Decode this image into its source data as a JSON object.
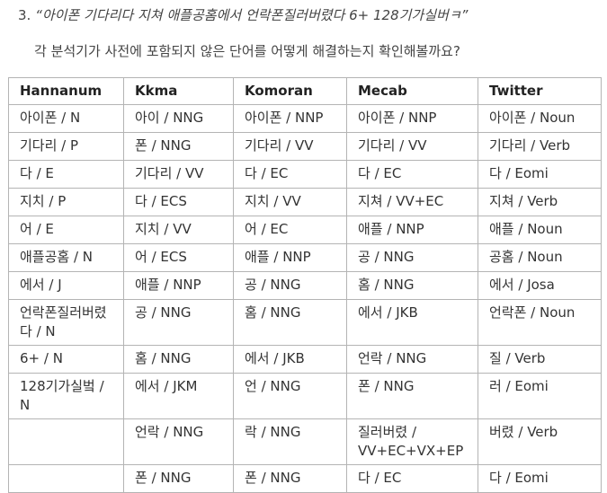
{
  "heading": {
    "number": "3.",
    "quote": "“아이폰 기다리다 지쳐 애플공홈에서 언락폰질러버렸다 6+ 128기가실버ㅋ”"
  },
  "intro": "각 분석기가 사전에 포함되지 않은 단어를 어떻게 해결하는지 확인해볼까요?",
  "table": {
    "headers": [
      "Hannanum",
      "Kkma",
      "Komoran",
      "Mecab",
      "Twitter"
    ],
    "rows": [
      [
        "아이폰 / N",
        "아이 / NNG",
        "아이폰 / NNP",
        "아이폰 / NNP",
        "아이폰 / Noun"
      ],
      [
        "기다리 / P",
        "폰 / NNG",
        "기다리 / VV",
        "기다리 / VV",
        "기다리 / Verb"
      ],
      [
        "다 / E",
        "기다리 / VV",
        "다 / EC",
        "다 / EC",
        "다 / Eomi"
      ],
      [
        "지치 / P",
        "다 / ECS",
        "지치 / VV",
        "지쳐 / VV+EC",
        "지쳐 / Verb"
      ],
      [
        "어 / E",
        "지치 / VV",
        "어 / EC",
        "애플 / NNP",
        "애플 / Noun"
      ],
      [
        "애플공홈 / N",
        "어 / ECS",
        "애플 / NNP",
        "공 / NNG",
        "공홈 / Noun"
      ],
      [
        "에서 / J",
        "애플 / NNP",
        "공 / NNG",
        "홈 / NNG",
        "에서 / Josa"
      ],
      [
        "언락폰질러버렸다 / N",
        "공 / NNG",
        "홈 / NNG",
        "에서 / JKB",
        "언락폰 / Noun"
      ],
      [
        "6+ / N",
        "홈 / NNG",
        "에서 / JKB",
        "언락 / NNG",
        "질 / Verb"
      ],
      [
        "128기가실벜 / N",
        "에서 / JKM",
        "언 / NNG",
        "폰 / NNG",
        "러 / Eomi"
      ],
      [
        "",
        "언락 / NNG",
        "락 / NNG",
        "질러버렸 / VV+EC+VX+EP",
        "버렸 / Verb"
      ],
      [
        "",
        "폰 / NNG",
        "폰 / NNG",
        "다 / EC",
        "다 / Eomi"
      ]
    ]
  }
}
